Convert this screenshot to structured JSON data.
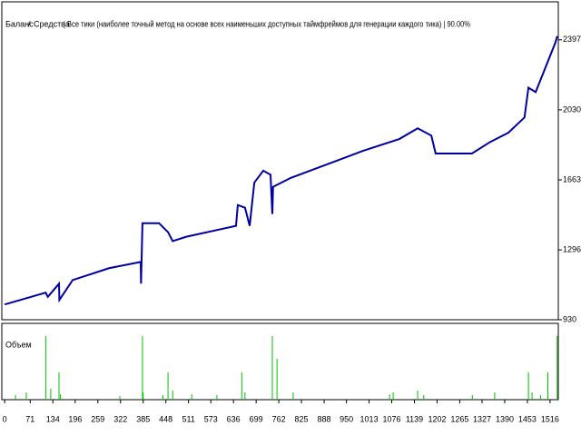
{
  "chart_data": {
    "type": "line",
    "series": [
      {
        "name": "Баланс",
        "color": "#0000a0",
        "x": [
          0,
          114,
          120,
          151,
          152,
          189,
          290,
          378,
          379,
          383,
          429,
          454,
          467,
          505,
          643,
          648,
          668,
          681,
          694,
          719,
          739,
          744,
          746,
          795,
          896,
          996,
          1097,
          1148,
          1186,
          1198,
          1299,
          1350,
          1400,
          1445,
          1456,
          1476,
          1501,
          1531,
          1536
        ],
        "values": [
          1010,
          1072,
          1050,
          1119,
          1034,
          1138,
          1200,
          1233,
          1119,
          1436,
          1436,
          1389,
          1342,
          1365,
          1422,
          1531,
          1517,
          1422,
          1649,
          1711,
          1690,
          1484,
          1626,
          1673,
          1744,
          1815,
          1877,
          1933,
          1895,
          1801,
          1801,
          1862,
          1910,
          1990,
          2146,
          2123,
          2241,
          2383,
          2416
        ]
      }
    ],
    "equity_label": "Средства",
    "equity_color": "#00a000",
    "legend_separator": "/",
    "title": "| Все тики (наиболее точный метод на основе всех наименьших доступных таймфреймов для генерации каждого тика) | 90.00%",
    "xlim": [
      -8,
      1539
    ],
    "ylim": [
      930,
      2596
    ],
    "yticks": [
      930,
      1296,
      1663,
      2030,
      2397
    ],
    "xticks": [
      0,
      71,
      134,
      196,
      259,
      322,
      385,
      448,
      511,
      573,
      636,
      699,
      762,
      825,
      888,
      950,
      1013,
      1076,
      1139,
      1202,
      1265,
      1327,
      1390,
      1453,
      1516
    ],
    "volume": {
      "label": "Объем",
      "color": "#00c000",
      "ylim": [
        0,
        80
      ],
      "x": [
        30,
        60,
        114,
        128,
        151,
        155,
        320,
        383,
        385,
        440,
        454,
        467,
        520,
        590,
        659,
        668,
        744,
        757,
        802,
        1070,
        1080,
        1148,
        1165,
        1300,
        1362,
        1456,
        1466,
        1490,
        1510,
        1536
      ],
      "values": [
        5,
        8,
        70,
        12,
        30,
        6,
        4,
        70,
        8,
        5,
        30,
        10,
        6,
        5,
        30,
        8,
        70,
        45,
        8,
        6,
        8,
        10,
        5,
        5,
        8,
        30,
        8,
        5,
        30,
        70
      ]
    }
  }
}
